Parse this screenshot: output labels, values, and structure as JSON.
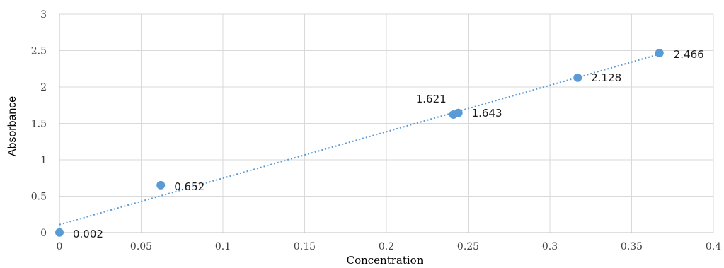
{
  "chart_data": {
    "type": "scatter",
    "xlabel": "Concentration",
    "ylabel": "Absorbance",
    "xlim": [
      0,
      0.4
    ],
    "ylim": [
      0,
      3
    ],
    "x_ticks": [
      "0",
      "0.05",
      "0.1",
      "0.15",
      "0.2",
      "0.25",
      "0.3",
      "0.35",
      "0.4"
    ],
    "y_ticks": [
      "0",
      "0.5",
      "1",
      "1.5",
      "2",
      "2.5",
      "3"
    ],
    "grid": true,
    "legend": "none",
    "series": [
      {
        "points": [
          {
            "x": 0,
            "y": 0.002,
            "label": "0.002"
          },
          {
            "x": 0.062,
            "y": 0.652,
            "label": "0.652"
          },
          {
            "x": 0.241,
            "y": 1.621,
            "label": "1.621"
          },
          {
            "x": 0.244,
            "y": 1.643,
            "label": "1.643"
          },
          {
            "x": 0.317,
            "y": 2.128,
            "label": "2.128"
          },
          {
            "x": 0.367,
            "y": 2.466,
            "label": "2.466"
          }
        ]
      }
    ],
    "trendline": {
      "type": "linear",
      "style": "dotted",
      "x_start": 0,
      "y_start": 0.11,
      "x_end": 0.37,
      "y_end": 2.47
    },
    "colors": {
      "marker": "#5b9bd5",
      "trendline": "#5b9bd5",
      "grid": "#d9d9d9"
    }
  }
}
